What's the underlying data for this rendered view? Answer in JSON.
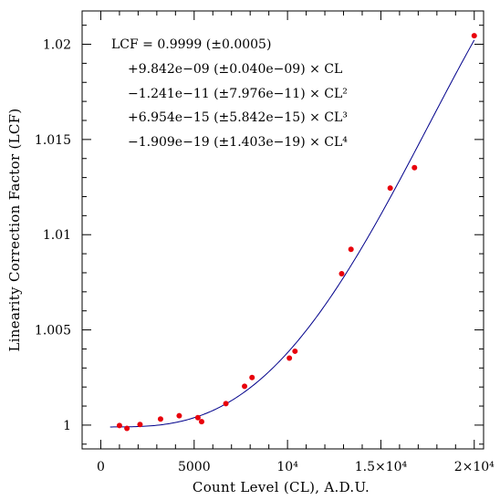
{
  "chart_data": {
    "type": "scatter",
    "title": "",
    "xlabel": "Count Level (CL), A.D.U.",
    "ylabel": "Linearity Correction Factor (LCF)",
    "xlim": [
      -1000,
      20500
    ],
    "ylim": [
      0.99875,
      1.02175
    ],
    "x_ticks": [
      {
        "value": 0,
        "label": "0"
      },
      {
        "value": 5000,
        "label": "5000"
      },
      {
        "value": 10000,
        "label": "10⁴"
      },
      {
        "value": 15000,
        "label": "1.5×10⁴"
      },
      {
        "value": 20000,
        "label": "2×10⁴"
      }
    ],
    "y_ticks": [
      {
        "value": 1.0,
        "label": "1"
      },
      {
        "value": 1.005,
        "label": "1.005"
      },
      {
        "value": 1.01,
        "label": "1.01"
      },
      {
        "value": 1.015,
        "label": "1.015"
      },
      {
        "value": 1.02,
        "label": "1.02"
      }
    ],
    "x_minor_step": 1000,
    "y_minor_step": 0.001,
    "points": {
      "color": "#e8000b",
      "x": [
        1000,
        1400,
        2100,
        3200,
        4200,
        5200,
        5400,
        6700,
        7700,
        8100,
        10100,
        10400,
        12900,
        13400,
        15500,
        16800,
        20000
      ],
      "y": [
        0.99998,
        0.99983,
        1.00003,
        1.00032,
        1.00049,
        1.00039,
        1.00018,
        1.00113,
        1.00204,
        1.0025,
        1.00352,
        1.00388,
        1.00795,
        1.00923,
        1.01245,
        1.01352,
        1.02045
      ]
    },
    "fit": {
      "color": "#00008b",
      "x_range": [
        500,
        20000
      ],
      "coefficients": [
        0.9999,
        9.842e-09,
        -1.241e-11,
        6.954e-15,
        -1.909e-19
      ]
    },
    "annotation": {
      "lines": [
        "LCF = 0.9999 (±0.0005)",
        "+9.842e−09 (±0.040e−09) × CL",
        "−1.241e−11 (±7.976e−11) × CL²",
        "+6.954e−15 (±5.842e−15) × CL³",
        "−1.909e−19 (±1.403e−19) × CL⁴"
      ],
      "placement": "top-left"
    },
    "grid": false
  }
}
